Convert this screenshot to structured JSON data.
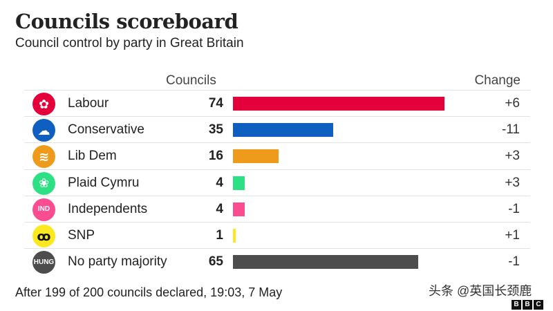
{
  "chart_data": {
    "type": "bar",
    "title": "Councils scoreboard",
    "subtitle": "Council control by party in Great Britain",
    "columns": {
      "councils": "Councils",
      "change": "Change"
    },
    "categories": [
      "Labour",
      "Conservative",
      "Lib Dem",
      "Plaid Cymru",
      "Independents",
      "SNP",
      "No party majority"
    ],
    "values": [
      74,
      35,
      16,
      4,
      4,
      1,
      65
    ],
    "changes": [
      "+6",
      "-11",
      "+3",
      "+3",
      "-1",
      "+1",
      "-1"
    ],
    "colors": [
      "#e4003b",
      "#0f5fc0",
      "#ee9b1c",
      "#2de083",
      "#fa4c91",
      "#fbe821",
      "#4d4d4d"
    ],
    "icons": [
      {
        "name": "labour-rose-icon",
        "text": ""
      },
      {
        "name": "conservative-tree-icon",
        "text": ""
      },
      {
        "name": "lib-dem-bird-icon",
        "text": ""
      },
      {
        "name": "plaid-cymru-flower-icon",
        "text": ""
      },
      {
        "name": "independent-icon",
        "text": "IND"
      },
      {
        "name": "snp-icon",
        "text": ""
      },
      {
        "name": "hung-icon",
        "text": "HUNG"
      }
    ],
    "footnote": "After 199 of 200 councils declared, 19:03, 7 May"
  },
  "watermark": "头条 @英国长颈鹿",
  "logo": [
    "B",
    "B",
    "C"
  ]
}
